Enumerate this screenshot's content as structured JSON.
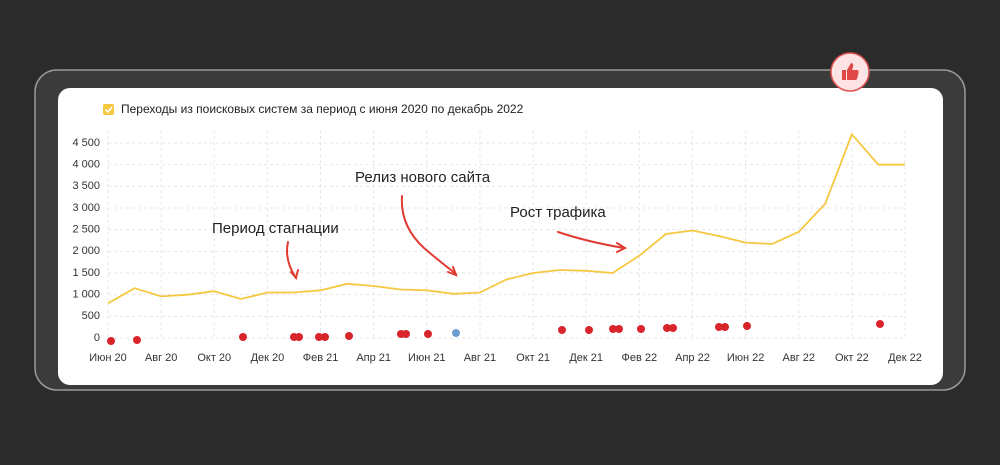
{
  "chart_data": {
    "type": "line",
    "categories": [
      "Июн 20",
      null,
      "Авг 20",
      null,
      "Окт 20",
      null,
      "Дек 20",
      null,
      "Фев 21",
      null,
      "Апр 21",
      null,
      "Июн 21",
      null,
      "Авг 21",
      null,
      "Окт 21",
      null,
      "Дек 21",
      null,
      "Фев 22",
      null,
      "Апр 22",
      null,
      "Июн 22",
      null,
      "Авг 22",
      null,
      "Окт 22",
      null,
      "Дек 22"
    ],
    "series": [
      {
        "name": "Переходы из поисковых систем за период с июня 2020 по декабрь 2022",
        "color": "#f5c842",
        "values": [
          800,
          1150,
          960,
          1000,
          1080,
          900,
          1050,
          1050,
          1100,
          1250,
          1200,
          1120,
          1100,
          1020,
          1050,
          1350,
          1500,
          1570,
          1550,
          1500,
          1900,
          2400,
          2480,
          2350,
          2200,
          2170,
          2450,
          3100,
          4700,
          4000,
          4000
        ]
      }
    ],
    "ylim": [
      0,
      4800
    ],
    "yticks": [
      0,
      500,
      {
        "value": 1000,
        "label": "1 000"
      },
      {
        "value": 1500,
        "label": "1 500"
      },
      {
        "value": 2000,
        "label": "2 000"
      },
      {
        "value": 2500,
        "label": "2 500"
      },
      {
        "value": 3000,
        "label": "3 000"
      },
      {
        "value": 3500,
        "label": "3 500"
      },
      {
        "value": 4000,
        "label": "4 000"
      },
      {
        "value": 4500,
        "label": "4 500"
      }
    ],
    "grid": true,
    "annotations": [
      "Период стагнации",
      "Релиз нового сайта",
      "Рост трафика"
    ]
  }
}
